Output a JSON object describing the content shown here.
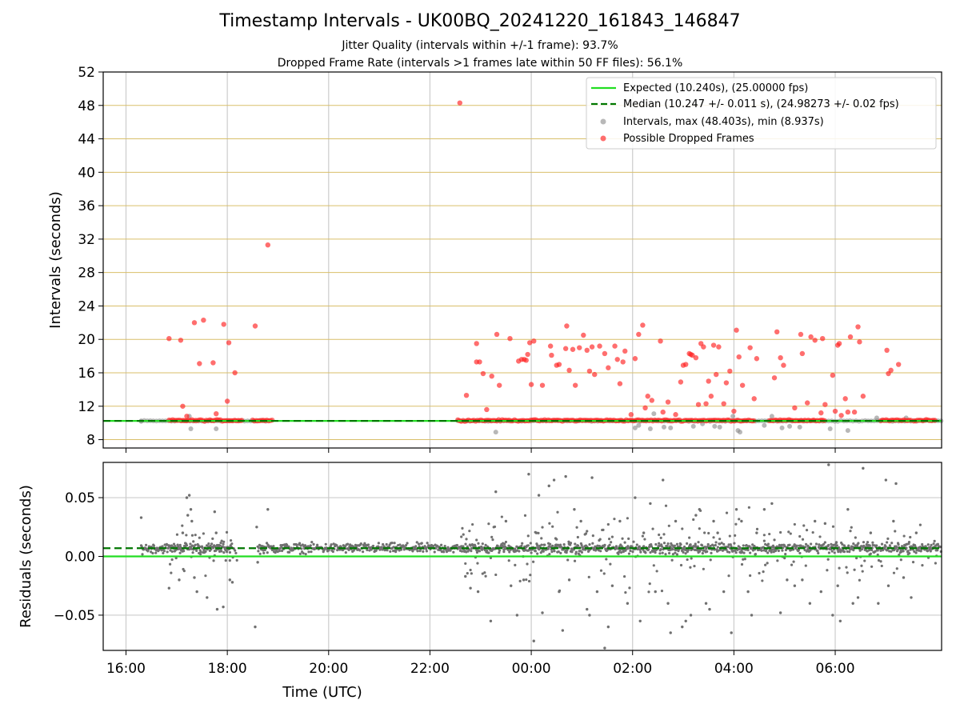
{
  "figure": {
    "title": "Timestamp Intervals - UK00BQ_20241220_161843_146847",
    "subtitle_jitter": "Jitter Quality (intervals within +/-1 frame): 93.7%",
    "subtitle_dropped": "Dropped Frame Rate (intervals >1 frames late within 50 FF files): 56.1%"
  },
  "chart_data": [
    {
      "id": "intervals",
      "type": "scatter",
      "ylabel": "Intervals (seconds)",
      "xlabel": "",
      "x_units": "hours_since_16:00_UTC_2024-12-20",
      "xlim": [
        -0.45,
        16.1
      ],
      "ylim": [
        7,
        52
      ],
      "yticks": [
        8,
        12,
        16,
        20,
        24,
        28,
        32,
        36,
        40,
        44,
        48,
        52
      ],
      "xtick_labels": [
        "16:00",
        "18:00",
        "20:00",
        "22:00",
        "00:00",
        "02:00",
        "04:00",
        "06:00"
      ],
      "xtick_values": [
        0,
        2,
        4,
        6,
        8,
        10,
        12,
        14
      ],
      "grid": "vertical grey lines, horizontal goldenrod lines",
      "legend_position": "top-right",
      "legend": [
        "Expected (10.240s), (25.00000 fps)",
        "Median (10.247 +/- 0.011 s), (24.98273 +/- 0.02 fps)",
        "Intervals, max (48.403s), min (8.937s)",
        "Possible Dropped Frames"
      ],
      "expected_line": {
        "y": 10.24,
        "color": "#22dd22"
      },
      "median_line": {
        "y": 10.247,
        "color": "#007700"
      },
      "normal_band": {
        "x_ranges": [
          [
            0.3,
            2.85
          ],
          [
            6.55,
            16.1
          ]
        ],
        "y": 10.24,
        "color": "#888888"
      },
      "dropped_band": {
        "x_ranges": [
          [
            0.85,
            2.3
          ],
          [
            2.5,
            2.9
          ],
          [
            6.55,
            12.4
          ],
          [
            12.7,
            13.8
          ],
          [
            14.9,
            15.5
          ],
          [
            15.55,
            16.0
          ]
        ],
        "y": 10.3,
        "color": "#ff2020"
      },
      "dropped_points": [
        [
          0.85,
          20.1
        ],
        [
          1.08,
          19.9
        ],
        [
          1.12,
          12.0
        ],
        [
          1.2,
          10.8
        ],
        [
          1.35,
          22.0
        ],
        [
          1.45,
          17.1
        ],
        [
          1.53,
          22.3
        ],
        [
          1.72,
          17.2
        ],
        [
          1.78,
          11.1
        ],
        [
          1.93,
          21.8
        ],
        [
          2.0,
          12.6
        ],
        [
          2.03,
          19.6
        ],
        [
          2.15,
          16.0
        ],
        [
          2.55,
          21.6
        ],
        [
          2.8,
          31.3
        ],
        [
          6.59,
          48.3
        ],
        [
          6.72,
          13.3
        ],
        [
          6.92,
          19.5
        ],
        [
          6.92,
          17.3
        ],
        [
          6.98,
          17.3
        ],
        [
          7.05,
          15.9
        ],
        [
          7.12,
          11.6
        ],
        [
          7.22,
          15.6
        ],
        [
          7.32,
          20.6
        ],
        [
          7.37,
          14.5
        ],
        [
          7.58,
          20.1
        ],
        [
          7.75,
          17.4
        ],
        [
          7.81,
          17.6
        ],
        [
          7.86,
          17.6
        ],
        [
          7.9,
          17.5
        ],
        [
          7.93,
          18.2
        ],
        [
          7.97,
          19.6
        ],
        [
          8.0,
          14.6
        ],
        [
          8.05,
          19.8
        ],
        [
          8.22,
          14.5
        ],
        [
          8.38,
          19.2
        ],
        [
          8.4,
          18.1
        ],
        [
          8.5,
          16.9
        ],
        [
          8.55,
          17.0
        ],
        [
          8.68,
          18.9
        ],
        [
          8.7,
          21.6
        ],
        [
          8.75,
          16.3
        ],
        [
          8.82,
          18.8
        ],
        [
          8.87,
          14.5
        ],
        [
          8.95,
          19.0
        ],
        [
          9.03,
          20.5
        ],
        [
          9.1,
          18.7
        ],
        [
          9.15,
          16.2
        ],
        [
          9.2,
          19.1
        ],
        [
          9.25,
          15.8
        ],
        [
          9.35,
          19.2
        ],
        [
          9.45,
          18.3
        ],
        [
          9.52,
          16.6
        ],
        [
          9.65,
          19.2
        ],
        [
          9.7,
          17.6
        ],
        [
          9.75,
          14.7
        ],
        [
          9.81,
          17.3
        ],
        [
          9.85,
          18.6
        ],
        [
          9.97,
          11.0
        ],
        [
          10.05,
          17.7
        ],
        [
          10.12,
          20.6
        ],
        [
          10.2,
          21.7
        ],
        [
          10.25,
          11.8
        ],
        [
          10.3,
          13.2
        ],
        [
          10.38,
          12.7
        ],
        [
          10.55,
          19.8
        ],
        [
          10.6,
          11.3
        ],
        [
          10.7,
          12.5
        ],
        [
          10.85,
          11.0
        ],
        [
          10.95,
          14.9
        ],
        [
          11.0,
          16.9
        ],
        [
          11.05,
          17.0
        ],
        [
          11.12,
          18.3
        ],
        [
          11.15,
          18.2
        ],
        [
          11.18,
          18.1
        ],
        [
          11.25,
          17.8
        ],
        [
          11.3,
          12.2
        ],
        [
          11.35,
          19.5
        ],
        [
          11.4,
          19.1
        ],
        [
          11.45,
          12.3
        ],
        [
          11.5,
          15.0
        ],
        [
          11.55,
          13.2
        ],
        [
          11.6,
          19.3
        ],
        [
          11.65,
          15.8
        ],
        [
          11.7,
          19.1
        ],
        [
          11.8,
          12.3
        ],
        [
          11.85,
          14.8
        ],
        [
          11.92,
          16.2
        ],
        [
          12.0,
          11.4
        ],
        [
          12.05,
          21.1
        ],
        [
          12.1,
          17.9
        ],
        [
          12.17,
          14.5
        ],
        [
          12.32,
          19.0
        ],
        [
          12.4,
          12.9
        ],
        [
          12.45,
          17.7
        ],
        [
          12.8,
          15.4
        ],
        [
          12.85,
          20.9
        ],
        [
          12.92,
          17.8
        ],
        [
          12.98,
          16.9
        ],
        [
          13.2,
          11.8
        ],
        [
          13.32,
          20.6
        ],
        [
          13.35,
          18.3
        ],
        [
          13.45,
          12.4
        ],
        [
          13.52,
          20.3
        ],
        [
          13.6,
          19.9
        ],
        [
          13.72,
          11.2
        ],
        [
          13.75,
          20.1
        ],
        [
          13.8,
          12.2
        ],
        [
          13.95,
          15.7
        ],
        [
          14.0,
          11.4
        ],
        [
          14.05,
          19.3
        ],
        [
          14.08,
          19.5
        ],
        [
          14.12,
          10.9
        ],
        [
          14.2,
          12.9
        ],
        [
          14.25,
          11.3
        ],
        [
          14.3,
          20.3
        ],
        [
          14.38,
          11.3
        ],
        [
          14.45,
          21.5
        ],
        [
          14.48,
          19.7
        ],
        [
          14.55,
          13.2
        ],
        [
          15.02,
          18.7
        ],
        [
          15.05,
          15.9
        ],
        [
          15.1,
          16.3
        ],
        [
          15.25,
          17.0
        ]
      ],
      "normal_points": [
        [
          0.3,
          10.2
        ],
        [
          1.28,
          9.3
        ],
        [
          1.25,
          10.8
        ],
        [
          1.78,
          9.3
        ],
        [
          1.68,
          10.3
        ],
        [
          7.3,
          8.9
        ],
        [
          10.05,
          9.4
        ],
        [
          10.12,
          9.7
        ],
        [
          10.35,
          9.3
        ],
        [
          10.42,
          11.1
        ],
        [
          10.62,
          9.5
        ],
        [
          10.75,
          9.4
        ],
        [
          11.2,
          9.6
        ],
        [
          11.38,
          9.9
        ],
        [
          11.62,
          9.6
        ],
        [
          11.72,
          9.5
        ],
        [
          11.98,
          10.8
        ],
        [
          12.08,
          9.1
        ],
        [
          12.12,
          8.9
        ],
        [
          12.6,
          9.7
        ],
        [
          12.75,
          10.8
        ],
        [
          12.95,
          9.4
        ],
        [
          13.1,
          9.6
        ],
        [
          13.3,
          9.5
        ],
        [
          13.9,
          9.3
        ],
        [
          14.25,
          9.1
        ],
        [
          14.82,
          10.6
        ],
        [
          15.4,
          10.6
        ]
      ]
    },
    {
      "id": "residuals",
      "type": "scatter",
      "ylabel": "Residuals (seconds)",
      "xlabel": "Time (UTC)",
      "x_units": "hours_since_16:00_UTC_2024-12-20",
      "xlim": [
        -0.45,
        16.1
      ],
      "ylim": [
        -0.08,
        0.08
      ],
      "ytick_labels": [
        "−0.05",
        "0.00",
        "0.05"
      ],
      "ytick_values": [
        -0.05,
        0.0,
        0.05
      ],
      "xtick_labels": [
        "16:00",
        "18:00",
        "20:00",
        "22:00",
        "00:00",
        "02:00",
        "04:00",
        "06:00"
      ],
      "xtick_values": [
        0,
        2,
        4,
        6,
        8,
        10,
        12,
        14
      ],
      "grid": true,
      "expected_line": {
        "y": 0.0,
        "color": "#22dd22"
      },
      "median_line": {
        "y": 0.007,
        "color": "#007700"
      },
      "point_color": "#707070",
      "dense_band": {
        "center": 0.007,
        "ranges": [
          [
            0.3,
            2.1
          ],
          [
            2.6,
            16.1
          ]
        ]
      },
      "outliers": [
        [
          0.3,
          0.033
        ],
        [
          0.5,
          0.008
        ],
        [
          0.85,
          -0.027
        ],
        [
          1.05,
          -0.02
        ],
        [
          1.12,
          0.02
        ],
        [
          1.2,
          0.05
        ],
        [
          1.25,
          0.052
        ],
        [
          1.28,
          0.04
        ],
        [
          1.3,
          0.03
        ],
        [
          1.22,
          0.035
        ],
        [
          1.35,
          -0.018
        ],
        [
          1.4,
          -0.03
        ],
        [
          1.6,
          -0.035
        ],
        [
          1.75,
          0.038
        ],
        [
          1.78,
          0.02
        ],
        [
          1.8,
          -0.045
        ],
        [
          1.92,
          -0.043
        ],
        [
          2.05,
          -0.02
        ],
        [
          2.1,
          -0.022
        ],
        [
          2.55,
          -0.06
        ],
        [
          2.58,
          0.025
        ],
        [
          2.6,
          -0.005
        ],
        [
          2.8,
          0.04
        ],
        [
          6.7,
          -0.017
        ],
        [
          6.8,
          -0.027
        ],
        [
          6.95,
          -0.03
        ],
        [
          7.2,
          -0.055
        ],
        [
          7.3,
          0.055
        ],
        [
          7.5,
          0.03
        ],
        [
          7.6,
          -0.025
        ],
        [
          7.72,
          -0.05
        ],
        [
          7.85,
          -0.02
        ],
        [
          7.95,
          0.07
        ],
        [
          8.05,
          -0.072
        ],
        [
          8.1,
          0.02
        ],
        [
          8.15,
          0.052
        ],
        [
          8.22,
          -0.048
        ],
        [
          8.35,
          0.06
        ],
        [
          8.45,
          0.065
        ],
        [
          8.55,
          -0.03
        ],
        [
          8.62,
          -0.063
        ],
        [
          8.68,
          0.068
        ],
        [
          8.75,
          -0.02
        ],
        [
          8.85,
          0.04
        ],
        [
          8.98,
          0.03
        ],
        [
          9.1,
          -0.045
        ],
        [
          9.15,
          -0.05
        ],
        [
          9.2,
          0.067
        ],
        [
          9.3,
          -0.03
        ],
        [
          9.45,
          -0.078
        ],
        [
          9.52,
          -0.06
        ],
        [
          9.6,
          -0.025
        ],
        [
          9.75,
          0.03
        ],
        [
          9.9,
          -0.04
        ],
        [
          10.05,
          0.05
        ],
        [
          10.15,
          -0.055
        ],
        [
          10.22,
          0.02
        ],
        [
          10.35,
          0.045
        ],
        [
          10.45,
          -0.03
        ],
        [
          10.6,
          0.065
        ],
        [
          10.7,
          -0.04
        ],
        [
          10.75,
          -0.065
        ],
        [
          10.85,
          0.03
        ],
        [
          10.98,
          -0.06
        ],
        [
          11.05,
          -0.055
        ],
        [
          11.15,
          -0.05
        ],
        [
          11.25,
          0.035
        ],
        [
          11.32,
          0.04
        ],
        [
          11.45,
          -0.04
        ],
        [
          11.52,
          -0.045
        ],
        [
          11.6,
          0.03
        ],
        [
          11.68,
          0.02
        ],
        [
          11.8,
          -0.03
        ],
        [
          11.95,
          -0.065
        ],
        [
          12.05,
          0.04
        ],
        [
          12.15,
          0.03
        ],
        [
          12.28,
          -0.03
        ],
        [
          12.35,
          -0.05
        ],
        [
          12.45,
          0.02
        ],
        [
          12.6,
          0.04
        ],
        [
          12.75,
          0.045
        ],
        [
          12.92,
          -0.048
        ],
        [
          13.05,
          -0.02
        ],
        [
          13.2,
          -0.025
        ],
        [
          13.35,
          -0.02
        ],
        [
          13.5,
          -0.04
        ],
        [
          13.6,
          0.03
        ],
        [
          13.72,
          -0.03
        ],
        [
          13.8,
          0.028
        ],
        [
          13.87,
          0.078
        ],
        [
          13.95,
          -0.05
        ],
        [
          14.05,
          -0.025
        ],
        [
          14.1,
          -0.055
        ],
        [
          14.25,
          0.04
        ],
        [
          14.35,
          -0.04
        ],
        [
          14.45,
          -0.035
        ],
        [
          14.55,
          0.075
        ],
        [
          14.7,
          0.02
        ],
        [
          14.85,
          -0.04
        ],
        [
          15.0,
          0.065
        ],
        [
          15.05,
          -0.025
        ],
        [
          15.15,
          0.03
        ],
        [
          15.2,
          0.062
        ],
        [
          15.35,
          -0.018
        ],
        [
          15.5,
          -0.035
        ],
        [
          15.6,
          0.02
        ]
      ]
    }
  ]
}
